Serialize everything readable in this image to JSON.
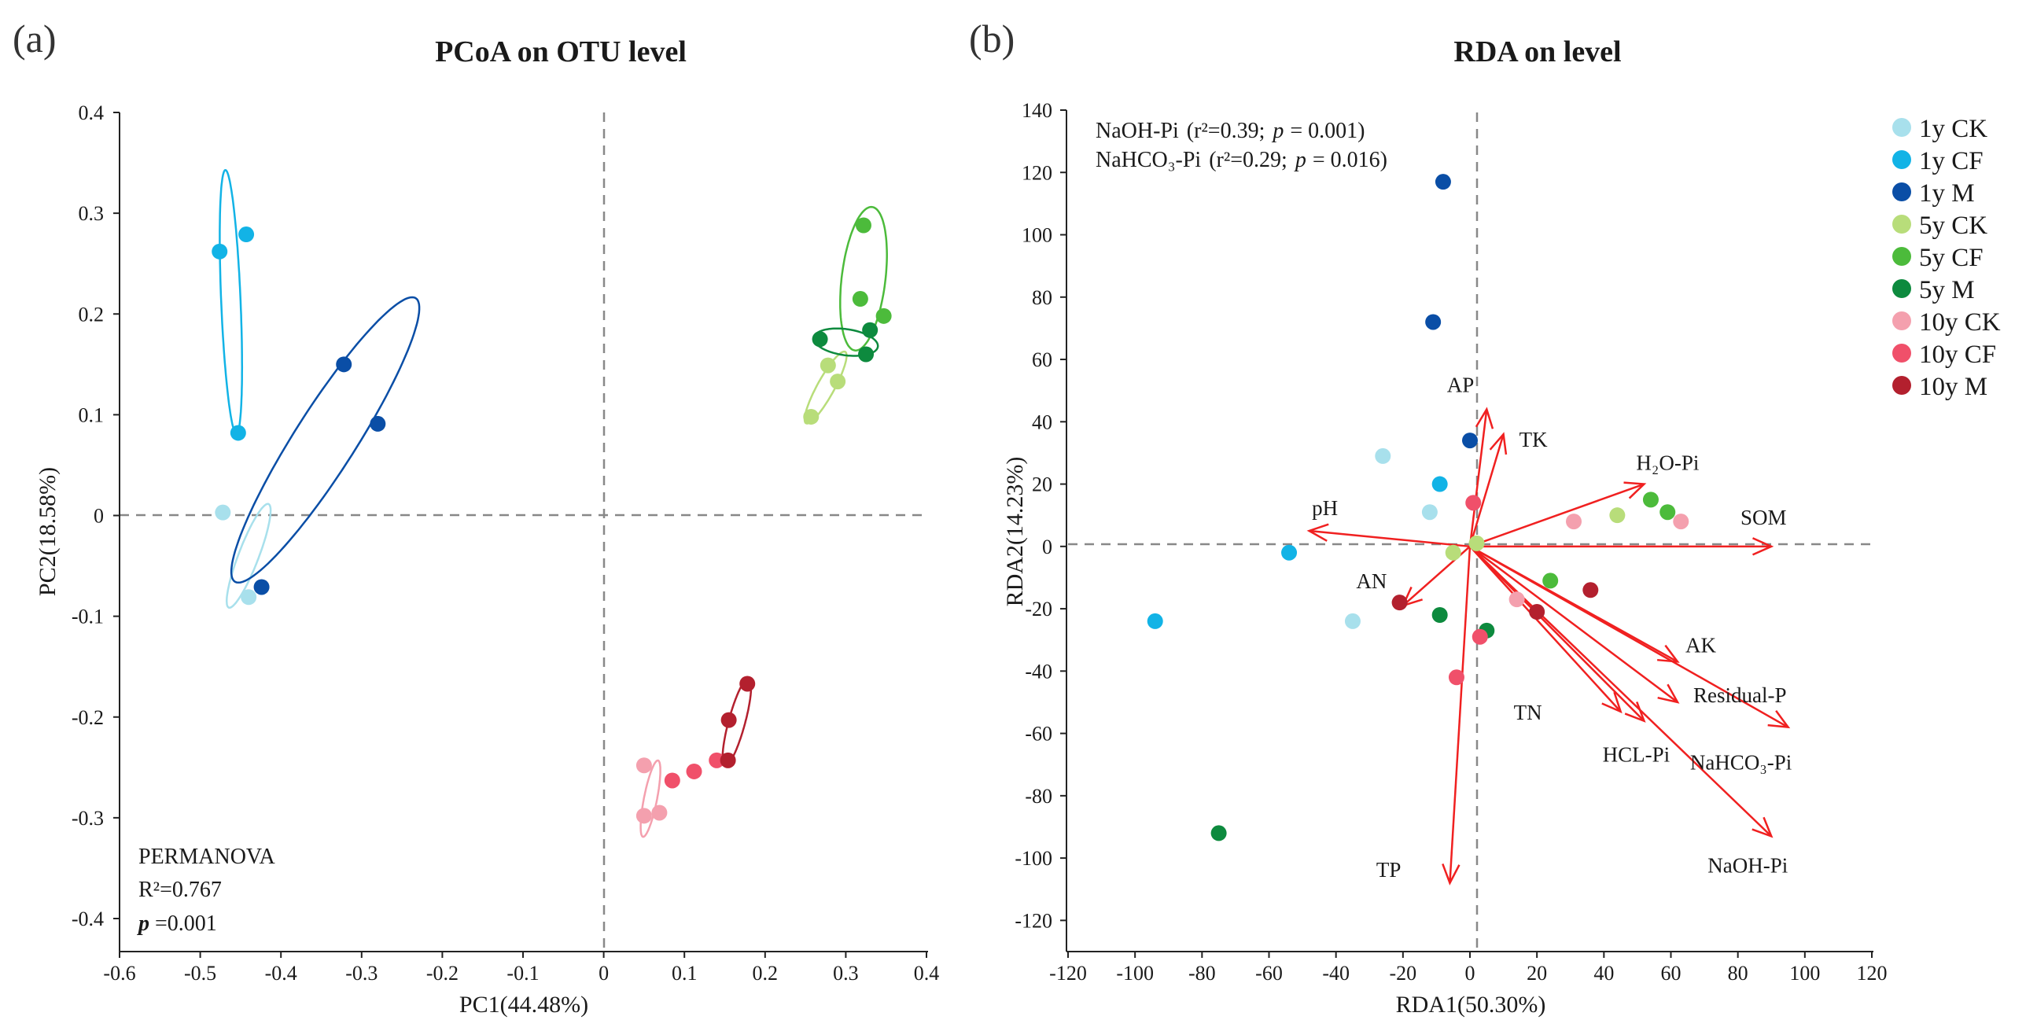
{
  "chart_data": [
    {
      "panel_label": "(a)",
      "type": "scatter",
      "title": "PCoA on OTU level",
      "xlabel": "PC1(44.48%)",
      "ylabel": "PC2(18.58%)",
      "xlim": [
        -0.6,
        0.4
      ],
      "ylim": [
        -0.4,
        0.4
      ],
      "xticks": [
        -0.6,
        -0.5,
        -0.4,
        -0.3,
        -0.2,
        -0.1,
        0,
        0.1,
        0.2,
        0.3,
        0.4
      ],
      "yticks": [
        -0.4,
        -0.3,
        -0.2,
        -0.1,
        0,
        0.1,
        0.2,
        0.3,
        0.4
      ],
      "xtick_labels": [
        "-0.6",
        "-0.5",
        "-0.4",
        "-0.3",
        "-0.2",
        "-0.1",
        "0",
        "0.1",
        "0.2",
        "0.3",
        "0.4"
      ],
      "ytick_labels": [
        "-0.4",
        "-0.3",
        "-0.2",
        "-0.1",
        "0",
        "0.1",
        "0.2",
        "0.3",
        "0.4"
      ],
      "annotation": {
        "line1": "PERMANOVA",
        "r2_label": "R²=0.767",
        "p_symbol": "p",
        "p_value": " =0.001"
      },
      "series": [
        {
          "name": "1y CK",
          "color": "#a8e0ec",
          "points": [
            [
              -0.472,
              0.003
            ],
            [
              -0.44,
              -0.081
            ]
          ],
          "ellipse": {
            "cx": -0.44,
            "cy": -0.04,
            "rx": 0.057,
            "ry": 0.012,
            "angle_deg": 64
          }
        },
        {
          "name": "1y CF",
          "color": "#12b3e6",
          "points": [
            [
              -0.476,
              0.262
            ],
            [
              -0.443,
              0.279
            ],
            [
              -0.453,
              0.082
            ]
          ],
          "ellipse": {
            "cx": -0.462,
            "cy": 0.212,
            "rx": 0.131,
            "ry": 0.012,
            "angle_deg": 93
          }
        },
        {
          "name": "1y M",
          "color": "#0a4ea6",
          "points": [
            [
              -0.322,
              0.15
            ],
            [
              -0.28,
              0.091
            ],
            [
              -0.424,
              -0.071
            ]
          ],
          "ellipse": {
            "cx": -0.345,
            "cy": 0.075,
            "rx": 0.18,
            "ry": 0.035,
            "angle_deg": 51
          }
        },
        {
          "name": "5y CK",
          "color": "#b8dd7a",
          "points": [
            [
              0.278,
              0.149
            ],
            [
              0.29,
              0.133
            ],
            [
              0.257,
              0.098
            ]
          ],
          "ellipse": {
            "cx": 0.275,
            "cy": 0.127,
            "rx": 0.043,
            "ry": 0.01,
            "angle_deg": 55
          }
        },
        {
          "name": "5y CF",
          "color": "#4cbb3b",
          "points": [
            [
              0.322,
              0.288
            ],
            [
              0.318,
              0.215
            ],
            [
              0.347,
              0.198
            ]
          ],
          "ellipse": {
            "cx": 0.322,
            "cy": 0.235,
            "rx": 0.072,
            "ry": 0.027,
            "angle_deg": 81
          }
        },
        {
          "name": "5y M",
          "color": "#0d8a3e",
          "points": [
            [
              0.268,
              0.175
            ],
            [
              0.33,
              0.184
            ],
            [
              0.325,
              0.16
            ]
          ],
          "ellipse": {
            "cx": 0.3,
            "cy": 0.172,
            "rx": 0.04,
            "ry": 0.013,
            "angle_deg": -6
          }
        },
        {
          "name": "10y CK",
          "color": "#f4a0ae",
          "points": [
            [
              0.05,
              -0.248
            ],
            [
              0.05,
              -0.298
            ],
            [
              0.069,
              -0.295
            ]
          ],
          "ellipse": {
            "cx": 0.058,
            "cy": -0.281,
            "rx": 0.039,
            "ry": 0.008,
            "angle_deg": 76
          }
        },
        {
          "name": "10y CF",
          "color": "#f0506a",
          "points": [
            [
              0.085,
              -0.263
            ],
            [
              0.112,
              -0.254
            ],
            [
              0.14,
              -0.243
            ]
          ],
          "ellipse": null
        },
        {
          "name": "10y M",
          "color": "#b3202e",
          "points": [
            [
              0.178,
              -0.167
            ],
            [
              0.155,
              -0.203
            ],
            [
              0.154,
              -0.243
            ]
          ],
          "ellipse": {
            "cx": 0.165,
            "cy": -0.205,
            "rx": 0.046,
            "ry": 0.01,
            "angle_deg": 71
          }
        }
      ]
    },
    {
      "panel_label": "(b)",
      "type": "scatter",
      "title": "RDA on level",
      "xlabel": "RDA1(50.30%)",
      "ylabel": "RDA2(14.23%)",
      "xlim": [
        -120,
        120
      ],
      "ylim": [
        -130,
        140
      ],
      "xticks": [
        -120,
        -100,
        -80,
        -60,
        -40,
        -20,
        0,
        20,
        40,
        60,
        80,
        100,
        120
      ],
      "yticks": [
        -120,
        -100,
        -80,
        -60,
        -40,
        -20,
        0,
        20,
        40,
        60,
        80,
        100,
        120,
        140
      ],
      "xtick_labels": [
        "-120",
        "-100",
        "-80",
        "-60",
        "-40",
        "-20",
        "0",
        "20",
        "40",
        "60",
        "80",
        "100",
        "120"
      ],
      "ytick_labels": [
        "-120",
        "-100",
        "-80",
        "-60",
        "-40",
        "-20",
        "0",
        "20",
        "40",
        "60",
        "80",
        "100",
        "120",
        "140"
      ],
      "annotations": {
        "line1_name": "NaOH-Pi",
        "line1_stats": "(r²=0.39;",
        "line1_p": "p",
        "line1_val": "= 0.001)",
        "line2_name": "NaHCO₃-Pi",
        "line2_stats": "(r²=0.29;",
        "line2_p": "p",
        "line2_val": "= 0.016)"
      },
      "arrows": [
        {
          "label": "AP",
          "x": 5,
          "y": 44
        },
        {
          "label": "TK",
          "x": 10,
          "y": 36
        },
        {
          "label": "H₂O-Pi",
          "x": 52,
          "y": 20
        },
        {
          "label": "SOM",
          "x": 90,
          "y": 0
        },
        {
          "label": "pH",
          "x": -48,
          "y": 5
        },
        {
          "label": "AN",
          "x": -20,
          "y": -19
        },
        {
          "label": "AK",
          "x": 62,
          "y": -37
        },
        {
          "label": "Residual-P",
          "x": 62,
          "y": -50
        },
        {
          "label": "NaHCO₃-Pi",
          "x": 95,
          "y": -58
        },
        {
          "label": "TN",
          "x": 45,
          "y": -53
        },
        {
          "label": "HCL-Pi",
          "x": 52,
          "y": -56
        },
        {
          "label": "NaOH-Pi",
          "x": 90,
          "y": -93
        },
        {
          "label": "TP",
          "x": -6,
          "y": -108
        }
      ],
      "series": [
        {
          "name": "1y CK",
          "color": "#a8e0ec",
          "points": [
            [
              -26,
              29
            ],
            [
              -12,
              11
            ],
            [
              -35,
              -24
            ]
          ]
        },
        {
          "name": "1y CF",
          "color": "#12b3e6",
          "points": [
            [
              -9,
              20
            ],
            [
              -54,
              -2
            ],
            [
              -94,
              -24
            ]
          ]
        },
        {
          "name": "1y M",
          "color": "#0a4ea6",
          "points": [
            [
              -8,
              117
            ],
            [
              -11,
              72
            ],
            [
              0,
              34
            ]
          ]
        },
        {
          "name": "5y CK",
          "color": "#b8dd7a",
          "points": [
            [
              44,
              10
            ],
            [
              2,
              1
            ],
            [
              -5,
              -2
            ]
          ]
        },
        {
          "name": "5y CF",
          "color": "#4cbb3b",
          "points": [
            [
              54,
              15
            ],
            [
              59,
              11
            ],
            [
              24,
              -11
            ]
          ]
        },
        {
          "name": "5y M",
          "color": "#0d8a3e",
          "points": [
            [
              -9,
              -22
            ],
            [
              5,
              -27
            ],
            [
              -75,
              -92
            ]
          ]
        },
        {
          "name": "10y CK",
          "color": "#f4a0ae",
          "points": [
            [
              31,
              8
            ],
            [
              63,
              8
            ],
            [
              14,
              -17
            ]
          ]
        },
        {
          "name": "10y CF",
          "color": "#f0506a",
          "points": [
            [
              1,
              14
            ],
            [
              3,
              -29
            ],
            [
              -4,
              -42
            ]
          ]
        },
        {
          "name": "10y M",
          "color": "#b3202e",
          "points": [
            [
              -21,
              -18
            ],
            [
              20,
              -21
            ],
            [
              36,
              -14
            ]
          ]
        }
      ]
    }
  ]
}
